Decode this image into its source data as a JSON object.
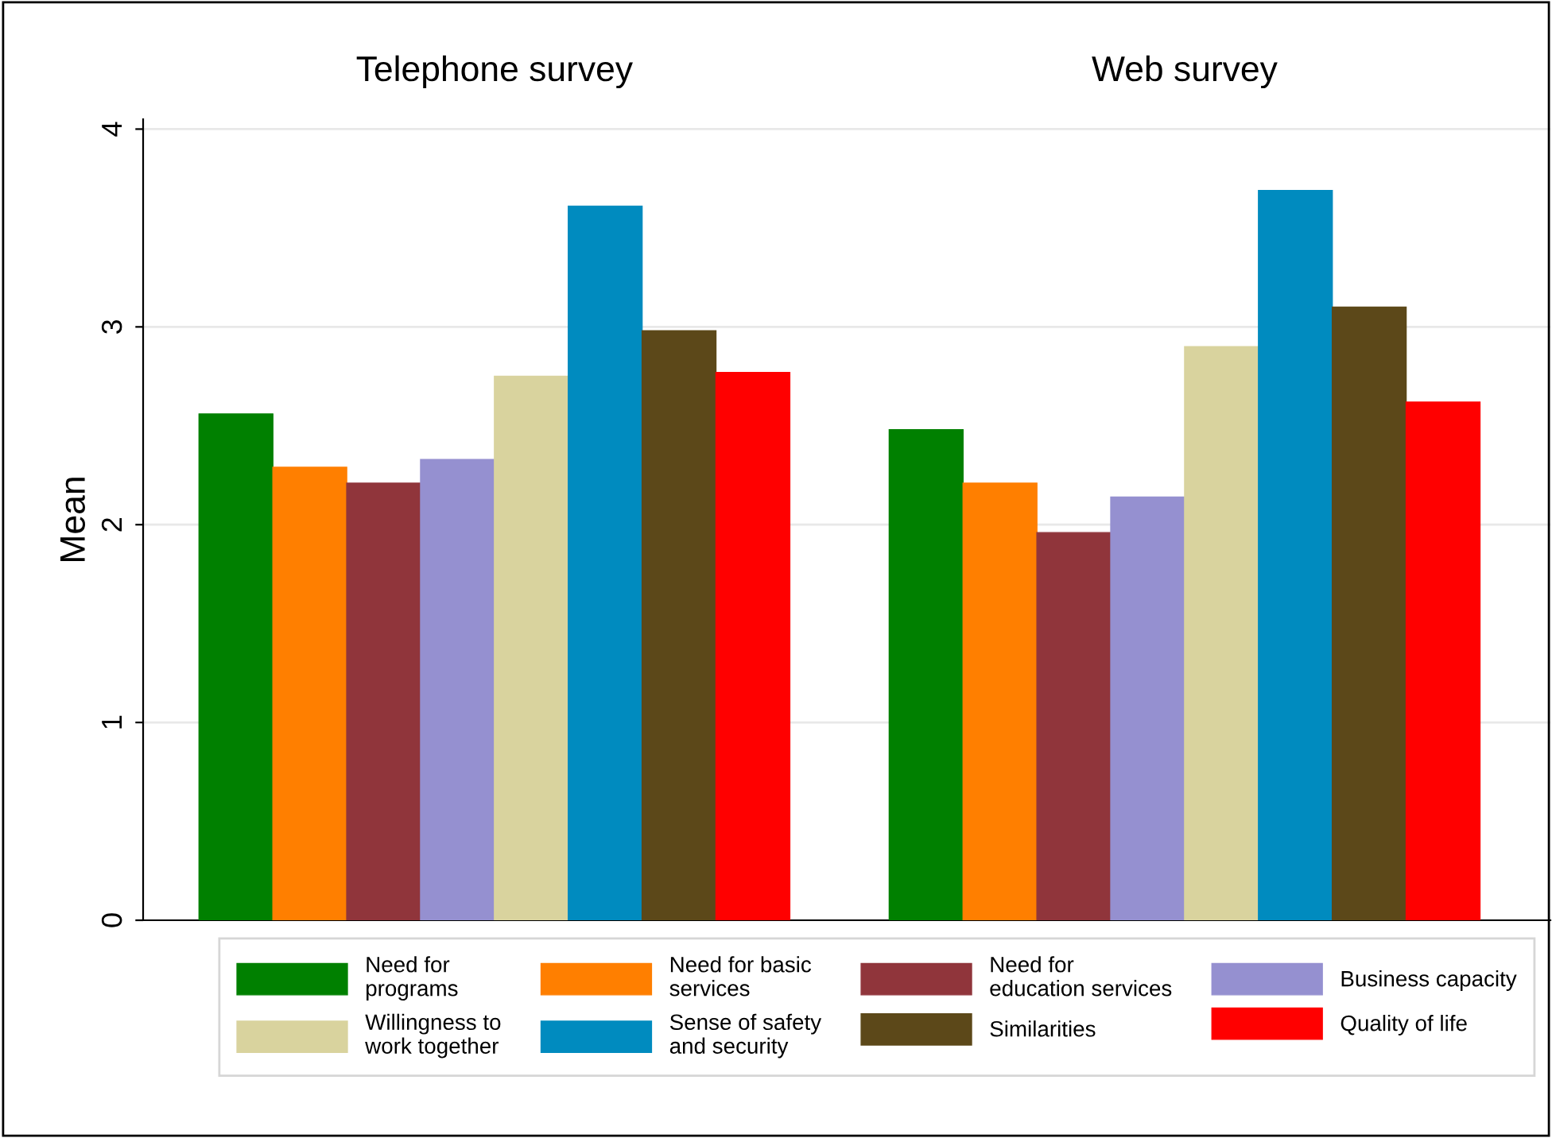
{
  "chart_data": {
    "type": "bar",
    "ylabel": "Mean",
    "categories": [
      "Telephone survey",
      "Web survey"
    ],
    "series": [
      {
        "name": "Need for\nprograms",
        "color": "#008000",
        "values": [
          2.56,
          2.48
        ]
      },
      {
        "name": "Need for basic\nservices",
        "color": "#ff7f00",
        "values": [
          2.29,
          2.21
        ]
      },
      {
        "name": "Need for\neducation services",
        "color": "#90353b",
        "values": [
          2.21,
          1.96
        ]
      },
      {
        "name": "Business capacity",
        "color": "#9590d0",
        "values": [
          2.33,
          2.14
        ]
      },
      {
        "name": "Willingness to\nwork together",
        "color": "#d9d39e",
        "values": [
          2.75,
          2.9
        ]
      },
      {
        "name": "Sense of safety\nand security",
        "color": "#008bbf",
        "values": [
          3.61,
          3.69
        ]
      },
      {
        "name": "Similarities",
        "color": "#5c4819",
        "values": [
          2.98,
          3.1
        ]
      },
      {
        "name": "Quality of life",
        "color": "#ff0000",
        "values": [
          2.77,
          2.62
        ]
      }
    ],
    "ylim": [
      0,
      4.05
    ],
    "yticks": [
      0,
      1,
      2,
      3,
      4
    ],
    "grid": "y",
    "legend": "bottom"
  }
}
